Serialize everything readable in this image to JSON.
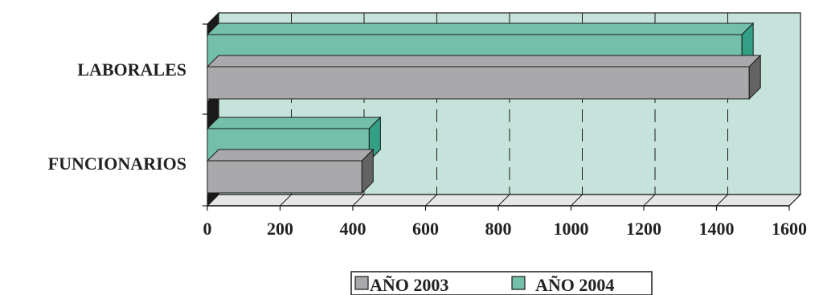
{
  "chart_data": {
    "type": "bar",
    "orientation": "horizontal",
    "three_d": true,
    "title": "",
    "xlabel": "",
    "ylabel": "",
    "categories": [
      "LABORALES",
      "FUNCIONARIOS"
    ],
    "series": [
      {
        "name": "AÑO 2003",
        "values": [
          1490,
          425
        ],
        "color": "#a9a8ab",
        "side_color": "#636363"
      },
      {
        "name": "AÑO 2004",
        "values": [
          1470,
          445
        ],
        "color": "#73bfaa",
        "side_color": "#33a086"
      }
    ],
    "xlim": [
      0,
      1600
    ],
    "xticks": [
      "0",
      "200",
      "400",
      "600",
      "800",
      "1000",
      "1200",
      "1400",
      "1600"
    ],
    "grid": true,
    "legend": {
      "placement": "bottom-center",
      "entries": [
        "AÑO 2003",
        "AÑO 2004"
      ]
    },
    "colors": {
      "plot_background": "#c5e3da",
      "floor": "#e6e6e6",
      "wall_edge": "#1a1a1a"
    }
  }
}
